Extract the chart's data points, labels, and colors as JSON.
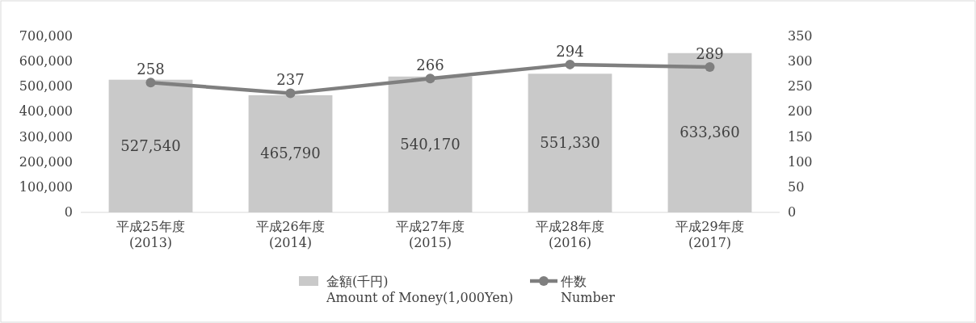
{
  "chart_data": {
    "type": "bar",
    "categories": [
      "平成25年度\n(2013)",
      "平成26年度\n(2014)",
      "平成27年度\n(2015)",
      "平成28年度\n(2016)",
      "平成29年度\n(2017)"
    ],
    "series": [
      {
        "name": "金額(千円)\nAmount of Money(1,000Yen)",
        "color": "#c9c9c9",
        "values": [
          527540,
          465790,
          540170,
          551330,
          633360
        ],
        "value_labels": [
          "527,540",
          "465,790",
          "540,170",
          "551,330",
          "633,360"
        ]
      },
      {
        "name": "件数\nNumber",
        "type": "line",
        "axis": "y2",
        "color": "#7f7f7f",
        "values": [
          258,
          237,
          266,
          294,
          289
        ],
        "value_labels": [
          "258",
          "237",
          "266",
          "294",
          "289"
        ]
      }
    ],
    "ylim": [
      0,
      700000
    ],
    "yticks": [
      {
        "value": 0,
        "label": "0"
      },
      {
        "value": 100000,
        "label": "100,000"
      },
      {
        "value": 200000,
        "label": "200,000"
      },
      {
        "value": 300000,
        "label": "300,000"
      },
      {
        "value": 400000,
        "label": "400,000"
      },
      {
        "value": 500000,
        "label": "500,000"
      },
      {
        "value": 600000,
        "label": "600,000"
      },
      {
        "value": 700000,
        "label": "700,000"
      }
    ],
    "y2lim": [
      0,
      350
    ],
    "y2ticks": [
      0,
      50,
      100,
      150,
      200,
      250,
      300,
      350
    ],
    "marker": "circle",
    "legend": "bottom"
  }
}
